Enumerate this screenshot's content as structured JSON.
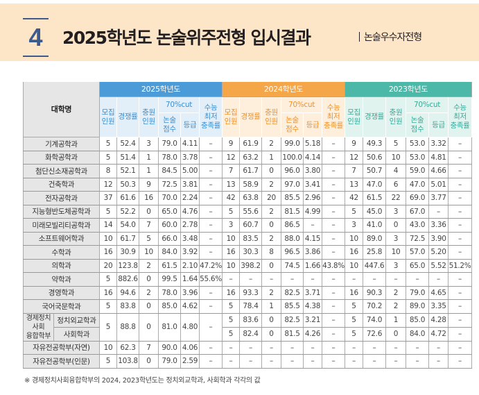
{
  "header": {
    "number": "4",
    "title": "2025학년도 논술위주전형 입시결과",
    "subtitle": "논술우수자전형"
  },
  "table": {
    "corner": "대학명",
    "years": [
      "2025학년도",
      "2024학년도",
      "2023학년도"
    ],
    "columns": {
      "recruit": "모집\n인원",
      "competition": "경쟁률",
      "fill": "충원\n인원",
      "cut": "70%cut",
      "score": "논술\n점수",
      "grade": "등급",
      "csat": "수능\n최저\n충족률"
    },
    "rows": [
      {
        "name": "기계공학과",
        "v": [
          [
            "5",
            "52.4",
            "3",
            "79.0",
            "4.11",
            "–"
          ],
          [
            "9",
            "61.9",
            "2",
            "99.0",
            "5.18",
            "–"
          ],
          [
            "9",
            "49.3",
            "5",
            "53.0",
            "3.32",
            "–"
          ]
        ]
      },
      {
        "name": "화학공학과",
        "v": [
          [
            "5",
            "51.4",
            "1",
            "78.0",
            "3.78",
            "–"
          ],
          [
            "12",
            "63.2",
            "1",
            "100.0",
            "4.14",
            "–"
          ],
          [
            "12",
            "50.6",
            "10",
            "53.0",
            "4.81",
            "–"
          ]
        ]
      },
      {
        "name": "첨단신소재공학과",
        "v": [
          [
            "8",
            "52.1",
            "1",
            "84.5",
            "5.00",
            "–"
          ],
          [
            "7",
            "61.7",
            "0",
            "96.0",
            "3.80",
            "–"
          ],
          [
            "7",
            "50.7",
            "4",
            "59.0",
            "4.66",
            "–"
          ]
        ]
      },
      {
        "name": "건축학과",
        "v": [
          [
            "12",
            "50.3",
            "9",
            "72.5",
            "3.81",
            "–"
          ],
          [
            "13",
            "58.9",
            "2",
            "97.0",
            "3.41",
            "–"
          ],
          [
            "13",
            "47.0",
            "6",
            "47.0",
            "5.01",
            "–"
          ]
        ]
      },
      {
        "name": "전자공학과",
        "v": [
          [
            "37",
            "61.6",
            "16",
            "70.0",
            "2.24",
            "–"
          ],
          [
            "42",
            "63.8",
            "20",
            "85.5",
            "2.96",
            "–"
          ],
          [
            "42",
            "61.5",
            "22",
            "69.0",
            "3.77",
            "–"
          ]
        ]
      },
      {
        "name": "지능형반도체공학과",
        "v": [
          [
            "5",
            "52.2",
            "0",
            "65.0",
            "4.76",
            "–"
          ],
          [
            "5",
            "55.6",
            "2",
            "81.5",
            "4.99",
            "–"
          ],
          [
            "5",
            "45.0",
            "3",
            "67.0",
            "–",
            "–"
          ]
        ]
      },
      {
        "name": "미래모빌리티공학과",
        "v": [
          [
            "14",
            "54.0",
            "7",
            "60.0",
            "2.78",
            "–"
          ],
          [
            "3",
            "60.7",
            "0",
            "86.5",
            "–",
            "–"
          ],
          [
            "3",
            "41.0",
            "0",
            "43.0",
            "3.36",
            "–"
          ]
        ]
      },
      {
        "name": "소프트웨어학과",
        "v": [
          [
            "10",
            "61.7",
            "5",
            "66.0",
            "3.48",
            "–"
          ],
          [
            "10",
            "83.5",
            "2",
            "88.0",
            "4.15",
            "–"
          ],
          [
            "10",
            "89.0",
            "3",
            "72.5",
            "3.90",
            "–"
          ]
        ]
      },
      {
        "name": "수학과",
        "v": [
          [
            "16",
            "30.9",
            "10",
            "84.0",
            "3.92",
            "–"
          ],
          [
            "16",
            "30.3",
            "8",
            "96.5",
            "3.86",
            "–"
          ],
          [
            "16",
            "25.8",
            "10",
            "57.0",
            "5.20",
            "–"
          ]
        ]
      },
      {
        "name": "의학과",
        "v": [
          [
            "20",
            "123.8",
            "2",
            "61.5",
            "2.10",
            "47.2%"
          ],
          [
            "10",
            "398.2",
            "0",
            "74.5",
            "1.66",
            "43.8%"
          ],
          [
            "10",
            "447.6",
            "3",
            "65.0",
            "5.52",
            "51.2%"
          ]
        ]
      },
      {
        "name": "약학과",
        "v": [
          [
            "5",
            "882.6",
            "0",
            "99.5",
            "1.64",
            "55.6%"
          ],
          [
            "–",
            "–",
            "–",
            "–",
            "–",
            "–"
          ],
          [
            "–",
            "–",
            "–",
            "–",
            "–",
            "–"
          ]
        ]
      },
      {
        "name": "경영학과",
        "v": [
          [
            "16",
            "94.6",
            "2",
            "78.0",
            "3.96",
            "–"
          ],
          [
            "16",
            "93.3",
            "2",
            "82.5",
            "3.71",
            "–"
          ],
          [
            "16",
            "90.3",
            "2",
            "79.0",
            "4.65",
            "–"
          ]
        ]
      },
      {
        "name": "국어국문학과",
        "v": [
          [
            "5",
            "83.8",
            "0",
            "85.0",
            "4.62",
            "–"
          ],
          [
            "5",
            "78.4",
            "1",
            "85.5",
            "4.38",
            "–"
          ],
          [
            "5",
            "70.2",
            "2",
            "89.0",
            "3.35",
            "–"
          ]
        ]
      }
    ],
    "group": {
      "name": "경제정치\n사회\n융합학부",
      "v2025": [
        "5",
        "88.8",
        "0",
        "81.0",
        "4.80",
        "–"
      ],
      "subs": [
        {
          "name": "정치외교학과",
          "v": [
            [
              "5",
              "83.6",
              "0",
              "82.5",
              "3.21",
              "–"
            ],
            [
              "5",
              "74.0",
              "1",
              "85.0",
              "4.28",
              "–"
            ]
          ]
        },
        {
          "name": "사회학과",
          "v": [
            [
              "5",
              "82.4",
              "0",
              "81.5",
              "4.26",
              "–"
            ],
            [
              "5",
              "72.6",
              "0",
              "84.0",
              "4.72",
              "–"
            ]
          ]
        }
      ]
    },
    "tail_rows": [
      {
        "name": "자유전공학부(자연)",
        "v": [
          [
            "10",
            "62.3",
            "7",
            "90.0",
            "4.06",
            "–"
          ],
          [
            "–",
            "–",
            "–",
            "–",
            "–",
            "–"
          ],
          [
            "–",
            "–",
            "–",
            "–",
            "–",
            "–"
          ]
        ]
      },
      {
        "name": "자유전공학부(인문)",
        "v": [
          [
            "5",
            "103.8",
            "0",
            "79.0",
            "2.59",
            "–"
          ],
          [
            "–",
            "–",
            "–",
            "–",
            "–",
            "–"
          ],
          [
            "–",
            "–",
            "–",
            "–",
            "–",
            "–"
          ]
        ]
      }
    ]
  },
  "note": "※ 경제정치사회융합학부의 2024, 2023학년도는 정치외교학과, 사회학과 각각의 값",
  "colors": {
    "y2025": "#4a9bd8",
    "y2024": "#f5a649",
    "y2023": "#4cb9a8",
    "banner": "#fde6c8",
    "number": "#3d5a8c"
  }
}
